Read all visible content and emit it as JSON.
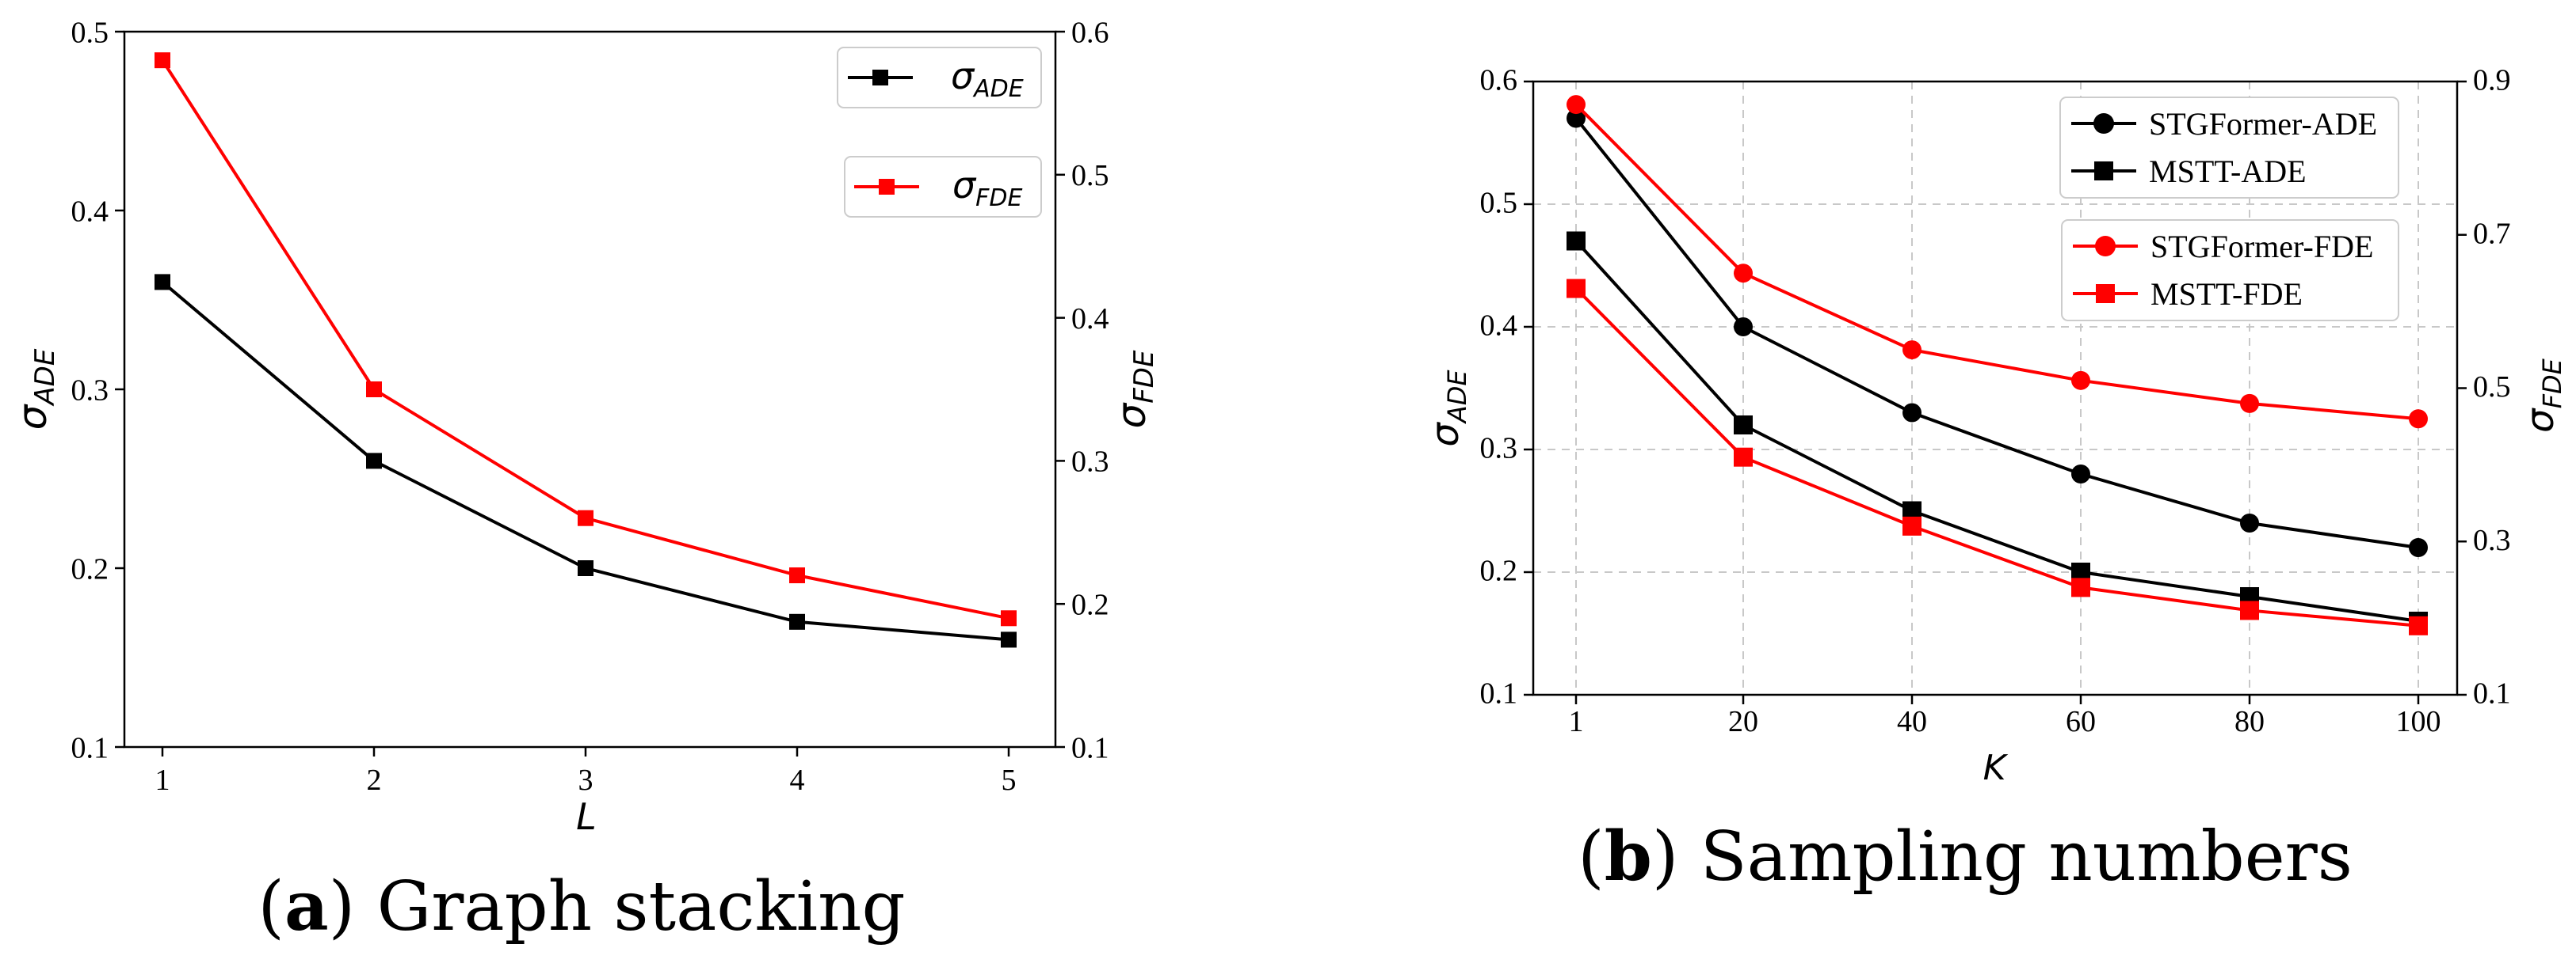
{
  "chart_data": [
    {
      "type": "line",
      "caption_label": "a",
      "caption_text": "Graph stacking",
      "x": [
        1,
        2,
        3,
        4,
        5
      ],
      "x_ticks": [
        "1",
        "2",
        "3",
        "4",
        "5"
      ],
      "xlabel": "L",
      "y_left": {
        "label_main": "σ",
        "label_sub": "ADE",
        "lim": [
          0.1,
          0.5
        ],
        "ticks": [
          "0.1",
          "0.2",
          "0.3",
          "0.4",
          "0.5"
        ]
      },
      "y_right": {
        "label_main": "σ",
        "label_sub": "FDE",
        "lim": [
          0.1,
          0.6
        ],
        "ticks": [
          "0.1",
          "0.2",
          "0.3",
          "0.4",
          "0.5",
          "0.6"
        ]
      },
      "grid": false,
      "series": [
        {
          "name_main": "σ",
          "name_sub": "ADE",
          "axis": "left",
          "color": "#000000",
          "marker": "square",
          "values": [
            0.36,
            0.26,
            0.2,
            0.17,
            0.16
          ]
        },
        {
          "name_main": "σ",
          "name_sub": "FDE",
          "axis": "right",
          "color": "#ff0000",
          "marker": "square",
          "values": [
            0.58,
            0.35,
            0.26,
            0.22,
            0.19
          ]
        }
      ],
      "legend_position": "top-right"
    },
    {
      "type": "line",
      "caption_label": "b",
      "caption_text": "Sampling numbers",
      "x": [
        1,
        20,
        40,
        60,
        80,
        100
      ],
      "x_ticks": [
        "1",
        "20",
        "40",
        "60",
        "80",
        "100"
      ],
      "xlabel": "K",
      "y_left": {
        "label_main": "σ",
        "label_sub": "ADE",
        "lim": [
          0.1,
          0.6
        ],
        "ticks": [
          "0.1",
          "0.2",
          "0.3",
          "0.4",
          "0.5",
          "0.6"
        ]
      },
      "y_right": {
        "label_main": "σ",
        "label_sub": "FDE",
        "lim": [
          0.1,
          0.9
        ],
        "ticks": [
          "0.1",
          "0.3",
          "0.5",
          "0.7",
          "0.9"
        ]
      },
      "grid": true,
      "series": [
        {
          "name": "STGFormer-ADE",
          "axis": "left",
          "color": "#000000",
          "marker": "circle",
          "values": [
            0.57,
            0.4,
            0.33,
            0.28,
            0.24,
            0.22
          ]
        },
        {
          "name": "MSTT-ADE",
          "axis": "left",
          "color": "#000000",
          "marker": "square",
          "values": [
            0.47,
            0.32,
            0.25,
            0.2,
            0.18,
            0.16
          ]
        },
        {
          "name": "STGFormer-FDE",
          "axis": "right",
          "color": "#ff0000",
          "marker": "circle",
          "values": [
            0.87,
            0.65,
            0.55,
            0.51,
            0.48,
            0.46
          ]
        },
        {
          "name": "MSTT-FDE",
          "axis": "right",
          "color": "#ff0000",
          "marker": "square",
          "values": [
            0.63,
            0.41,
            0.32,
            0.24,
            0.21,
            0.19
          ]
        }
      ],
      "legend_position": "top-right"
    }
  ]
}
